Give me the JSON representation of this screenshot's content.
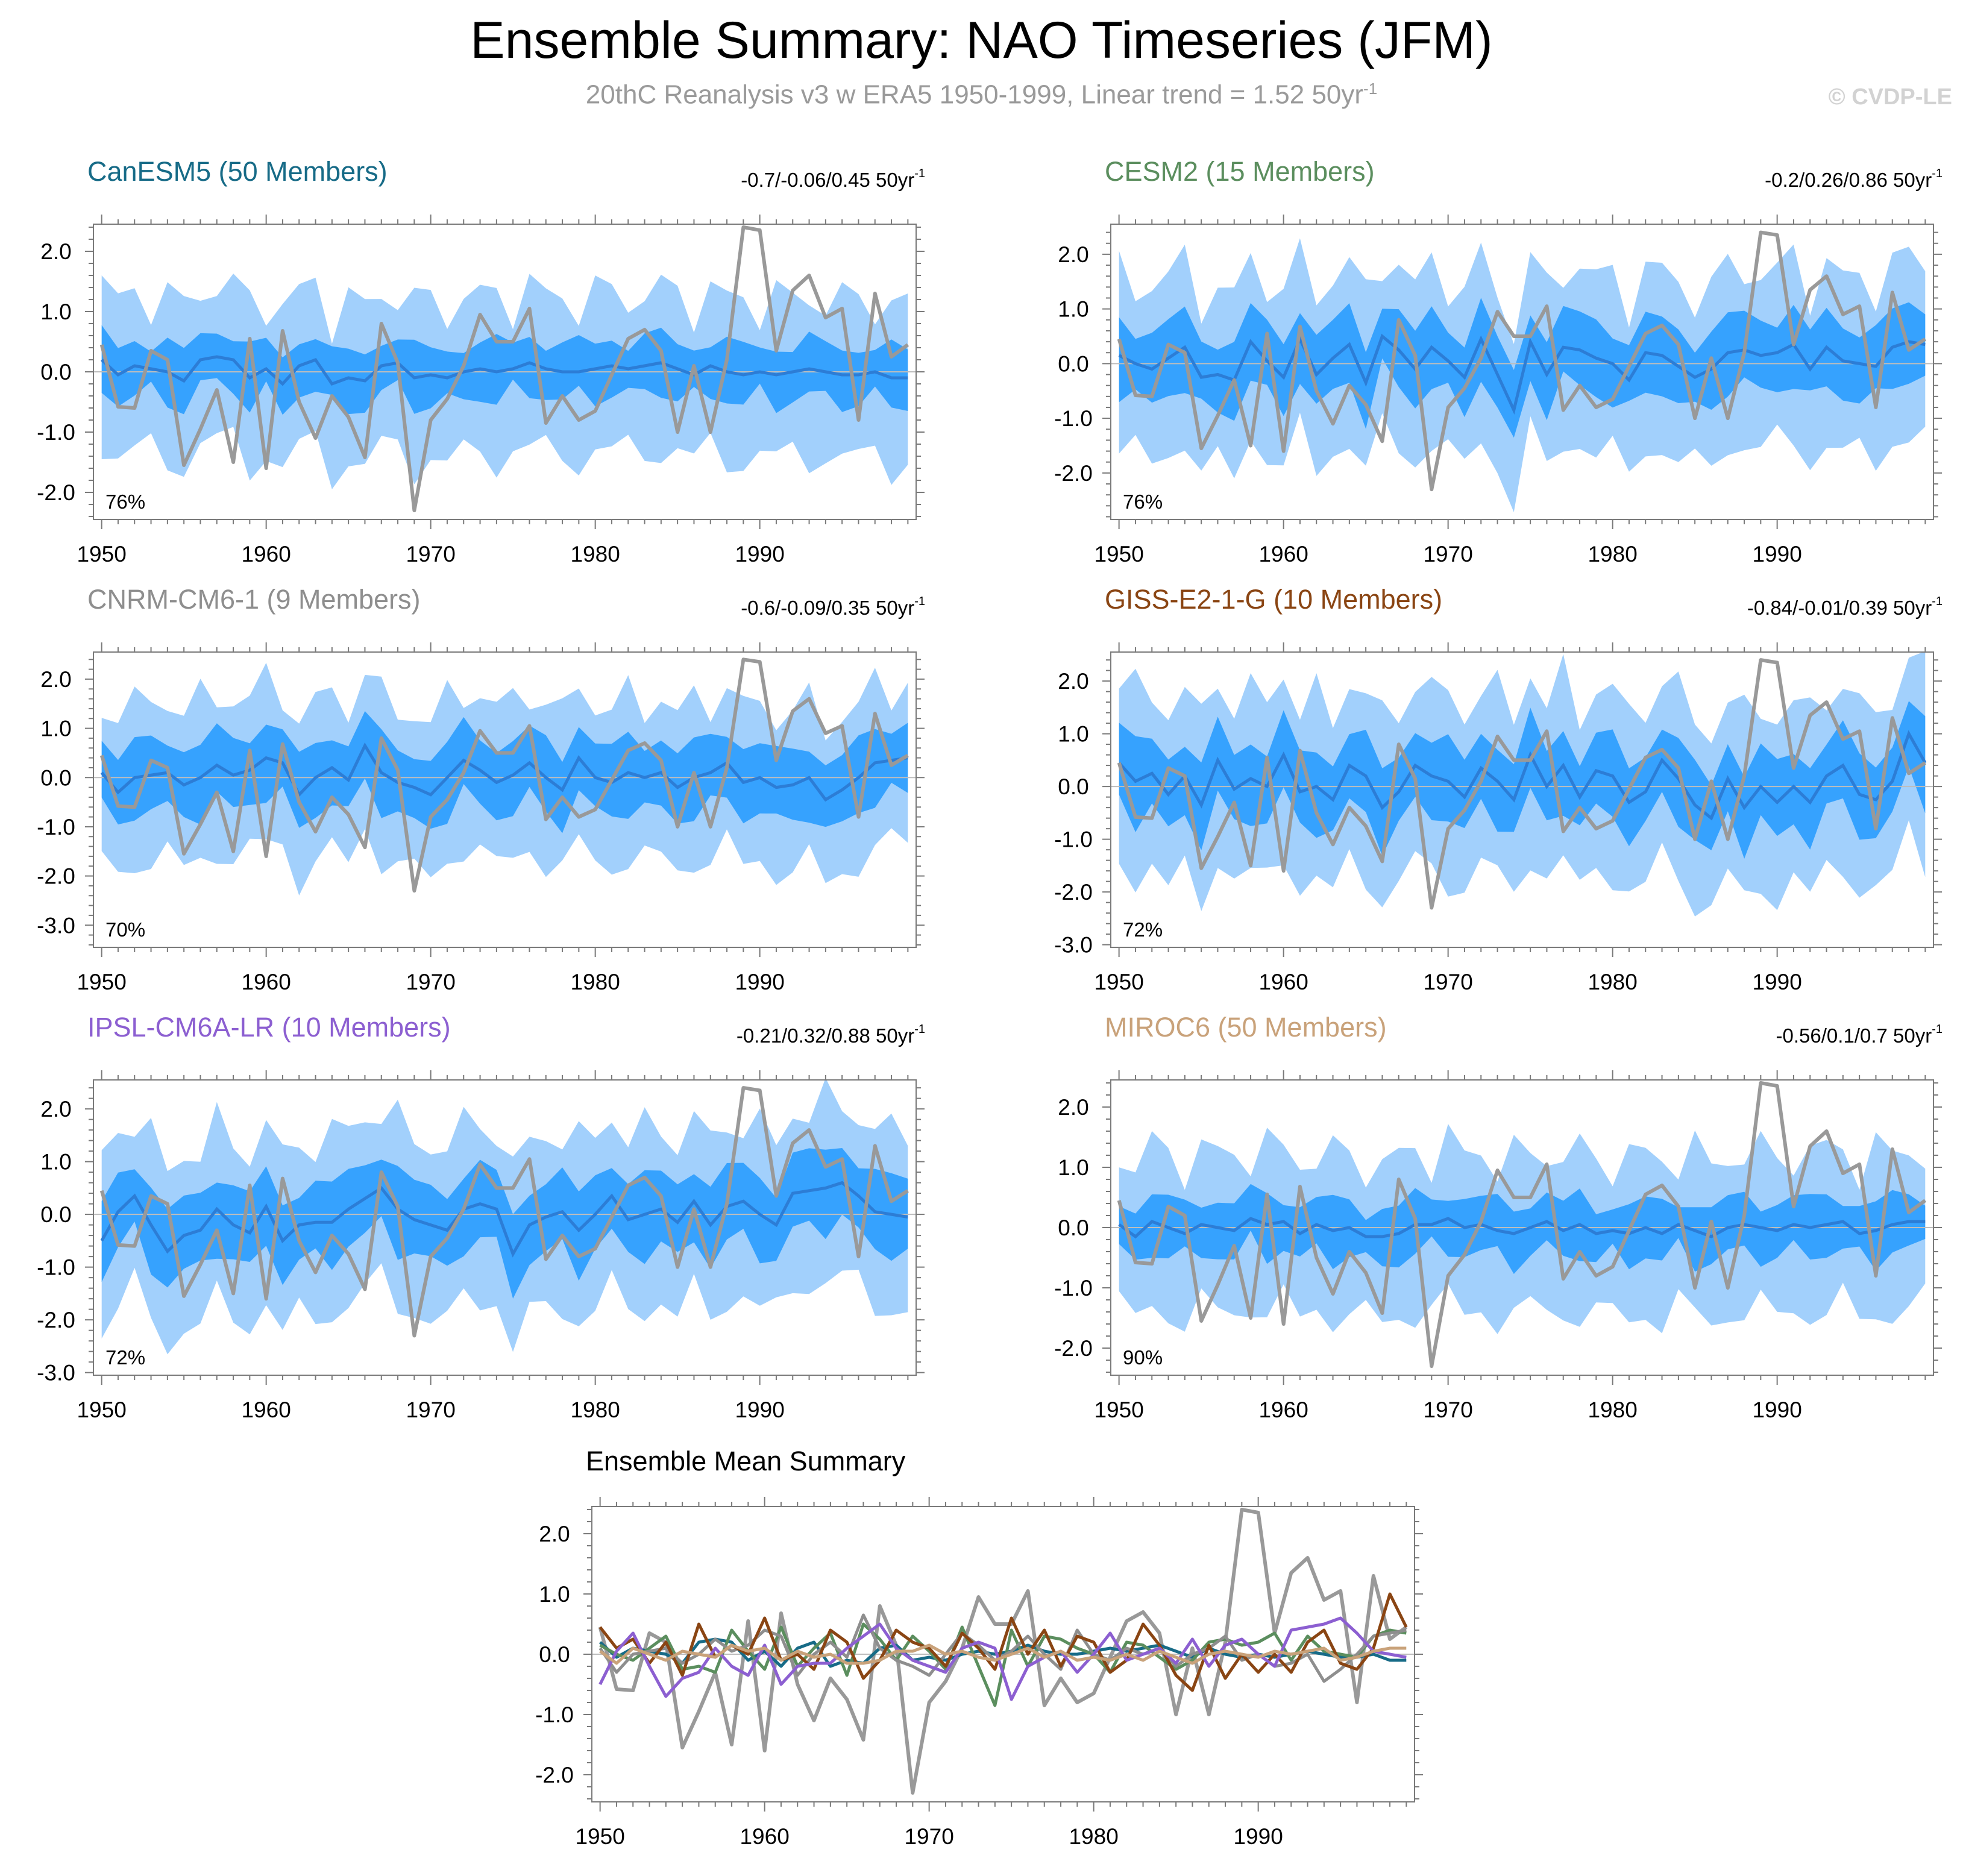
{
  "title": "Ensemble Summary: NAO Timeseries (JFM)",
  "subtitle": {
    "text": "20thC Reanalysis v3 w ERA5 1950-1999, Linear trend = 1.52 50yr",
    "superscript": "-1"
  },
  "copyright": "© CVDP-LE",
  "colors": {
    "band_light": "#a2d0fc",
    "band_dark": "#36a2fe",
    "ensemble_mean_line": "#2c7dd6",
    "observation_line": "#999999",
    "zero_line": "#bdbdbd",
    "frame": "#7a7a7a"
  },
  "chart_data": [
    {
      "type": "line",
      "model": "CanESM5 (50 Members)",
      "title_color": "#176b87",
      "trend_label": "-0.7/-0.06/0.45 50yr",
      "trend_superscript": "-1",
      "percent_label": "76%",
      "xlim": [
        1949.5,
        1999.5
      ],
      "ylim": [
        -2.45,
        2.45
      ],
      "yticks": [
        "2.0",
        "1.0",
        "0.0",
        "-1.0",
        "-2.0"
      ],
      "ytick_values": [
        2,
        1,
        0,
        -1,
        -2
      ],
      "xticks": [
        "1950",
        "1960",
        "1970",
        "1980",
        "1990"
      ],
      "spread_amp": [
        1.2,
        0.45
      ]
    },
    {
      "type": "line",
      "model": "CESM2 (15 Members)",
      "title_color": "#5b8e5e",
      "trend_label": "-0.2/0.26/0.86 50yr",
      "trend_superscript": "-1",
      "percent_label": "76%",
      "xlim": [
        1949.5,
        1999.5
      ],
      "ylim": [
        -2.85,
        2.55
      ],
      "yticks": [
        "2.0",
        "1.0",
        "0.0",
        "-1.0",
        "-2.0"
      ],
      "ytick_values": [
        2,
        1,
        0,
        -1,
        -2
      ],
      "xticks": [
        "1950",
        "1960",
        "1970",
        "1980",
        "1990"
      ],
      "spread_amp": [
        1.5,
        0.65
      ]
    },
    {
      "type": "line",
      "model": "CNRM-CM6-1 (9 Members)",
      "title_color": "#8e8e8e",
      "trend_label": "-0.6/-0.09/0.35 50yr",
      "trend_superscript": "-1",
      "percent_label": "70%",
      "xlim": [
        1949.5,
        1999.5
      ],
      "ylim": [
        -3.45,
        2.55
      ],
      "yticks": [
        "2.0",
        "1.0",
        "0.0",
        "-1.0",
        "-2.0",
        "-3.0"
      ],
      "ytick_values": [
        2,
        1,
        0,
        -1,
        -2,
        -3
      ],
      "xticks": [
        "1950",
        "1960",
        "1970",
        "1980",
        "1990"
      ],
      "spread_amp": [
        1.5,
        0.7
      ]
    },
    {
      "type": "line",
      "model": "GISS-E2-1-G (10 Members)",
      "title_color": "#8a4513",
      "trend_label": "-0.84/-0.01/0.39 50yr",
      "trend_superscript": "-1",
      "percent_label": "72%",
      "xlim": [
        1949.5,
        1999.5
      ],
      "ylim": [
        -3.05,
        2.55
      ],
      "yticks": [
        "2.0",
        "1.0",
        "0.0",
        "-1.0",
        "-2.0",
        "-3.0"
      ],
      "ytick_values": [
        2,
        1,
        0,
        -1,
        -2,
        -3
      ],
      "xticks": [
        "1950",
        "1960",
        "1970",
        "1980",
        "1990"
      ],
      "spread_amp": [
        1.6,
        0.7
      ]
    },
    {
      "type": "line",
      "model": "IPSL-CM6A-LR (10 Members)",
      "title_color": "#8c5fd1",
      "trend_label": "-0.21/0.32/0.88 50yr",
      "trend_superscript": "-1",
      "percent_label": "72%",
      "xlim": [
        1949.5,
        1999.5
      ],
      "ylim": [
        -3.05,
        2.55
      ],
      "yticks": [
        "2.0",
        "1.0",
        "0.0",
        "-1.0",
        "-2.0",
        "-3.0"
      ],
      "ytick_values": [
        2,
        1,
        0,
        -1,
        -2,
        -3
      ],
      "xticks": [
        "1950",
        "1960",
        "1970",
        "1980",
        "1990"
      ],
      "spread_amp": [
        1.55,
        0.7
      ]
    },
    {
      "type": "line",
      "model": "MIROC6 (50 Members)",
      "title_color": "#c9a27a",
      "trend_label": "-0.56/0.1/0.7 50yr",
      "trend_superscript": "-1",
      "percent_label": "90%",
      "xlim": [
        1949.5,
        1999.5
      ],
      "ylim": [
        -2.45,
        2.45
      ],
      "yticks": [
        "2.0",
        "1.0",
        "0.0",
        "-1.0",
        "-2.0"
      ],
      "ytick_values": [
        2,
        1,
        0,
        -1,
        -2
      ],
      "xticks": [
        "1950",
        "1960",
        "1970",
        "1980",
        "1990"
      ],
      "spread_amp": [
        1.2,
        0.45
      ]
    },
    {
      "type": "line",
      "title": "Ensemble Mean Summary",
      "xlim": [
        1949.5,
        1999.5
      ],
      "ylim": [
        -2.45,
        2.45
      ],
      "yticks": [
        "2.0",
        "1.0",
        "0.0",
        "-1.0",
        "-2.0"
      ],
      "ytick_values": [
        2,
        1,
        0,
        -1,
        -2
      ],
      "xticks": [
        "1950",
        "1960",
        "1970",
        "1980",
        "1990"
      ],
      "series": [
        {
          "name": "CanESM5",
          "color": "#176b87"
        },
        {
          "name": "CESM2",
          "color": "#5b8e5e"
        },
        {
          "name": "CNRM-CM6-1",
          "color": "#8e8e8e"
        },
        {
          "name": "GISS-E2-1-G",
          "color": "#8a4513"
        },
        {
          "name": "IPSL-CM6A-LR",
          "color": "#8c5fd1"
        },
        {
          "name": "MIROC6",
          "color": "#c9a27a"
        }
      ]
    }
  ],
  "observations": {
    "name": "20thC Reanalysis v3 w ERA5",
    "x": [
      1950,
      1951,
      1952,
      1953,
      1954,
      1955,
      1956,
      1957,
      1958,
      1959,
      1960,
      1961,
      1962,
      1963,
      1964,
      1965,
      1966,
      1967,
      1968,
      1969,
      1970,
      1971,
      1972,
      1973,
      1974,
      1975,
      1976,
      1977,
      1978,
      1979,
      1980,
      1981,
      1982,
      1983,
      1984,
      1985,
      1986,
      1987,
      1988,
      1989,
      1990,
      1991,
      1992,
      1993,
      1994,
      1995,
      1996,
      1997,
      1998,
      1999
    ],
    "y": [
      0.45,
      -0.58,
      -0.6,
      0.35,
      0.2,
      -1.55,
      -0.95,
      -0.3,
      -1.5,
      0.55,
      -1.6,
      0.68,
      -0.5,
      -1.1,
      -0.4,
      -0.75,
      -1.42,
      0.8,
      0.15,
      -2.3,
      -0.8,
      -0.45,
      0.1,
      0.95,
      0.5,
      0.5,
      1.05,
      -0.85,
      -0.4,
      -0.8,
      -0.65,
      -0.05,
      0.55,
      0.7,
      0.35,
      -1.0,
      0.1,
      -1.0,
      0.2,
      2.4,
      2.35,
      0.35,
      1.35,
      1.6,
      0.9,
      1.05,
      -0.8,
      1.3,
      0.25,
      0.45
    ]
  },
  "ensemble_means": {
    "CanESM5": [
      0.2,
      -0.05,
      0.1,
      0.05,
      0.0,
      -0.15,
      0.2,
      0.25,
      0.2,
      -0.1,
      0.05,
      -0.2,
      0.1,
      0.2,
      -0.2,
      -0.1,
      -0.15,
      0.1,
      0.15,
      -0.1,
      -0.05,
      -0.1,
      0.0,
      0.05,
      0.0,
      0.05,
      0.15,
      0.05,
      0.0,
      0.0,
      0.05,
      0.1,
      0.05,
      0.1,
      0.15,
      0.05,
      -0.05,
      0.1,
      0.0,
      -0.05,
      0.0,
      -0.05,
      0.0,
      0.05,
      0.0,
      -0.05,
      -0.05,
      0.0,
      -0.1,
      -0.1
    ],
    "CESM2": [
      0.15,
      0.0,
      -0.1,
      0.1,
      0.3,
      -0.25,
      -0.2,
      -0.3,
      0.4,
      0.05,
      -0.25,
      0.45,
      -0.2,
      0.1,
      0.35,
      -0.35,
      0.5,
      0.25,
      -0.1,
      0.3,
      0.05,
      -0.25,
      0.45,
      -0.2,
      -0.85,
      0.4,
      -0.2,
      0.3,
      0.25,
      0.1,
      0.0,
      -0.3,
      0.2,
      0.15,
      -0.05,
      -0.25,
      -0.1,
      0.2,
      0.25,
      0.15,
      0.2,
      0.35,
      -0.1,
      0.3,
      0.05,
      0.0,
      -0.05,
      0.3,
      0.4,
      0.35
    ],
    "CNRM-CM6-1": [
      0.1,
      -0.3,
      0.0,
      0.05,
      0.1,
      -0.15,
      0.0,
      0.25,
      0.05,
      0.15,
      0.4,
      0.3,
      -0.35,
      0.0,
      0.2,
      -0.05,
      0.65,
      0.1,
      -0.1,
      -0.2,
      -0.35,
      0.0,
      0.35,
      0.15,
      -0.1,
      0.05,
      0.3,
      0.0,
      -0.25,
      0.4,
      0.0,
      -0.1,
      0.1,
      0.0,
      0.1,
      -0.2,
      0.0,
      0.1,
      0.3,
      -0.1,
      0.0,
      -0.2,
      -0.15,
      0.0,
      -0.45,
      -0.25,
      0.0,
      0.3,
      0.35,
      0.4
    ],
    "GISS-E2-1-G": [
      0.45,
      0.1,
      0.25,
      -0.15,
      0.2,
      -0.35,
      0.5,
      -0.05,
      0.15,
      0.0,
      0.6,
      -0.1,
      0.0,
      -0.25,
      0.4,
      0.2,
      -0.4,
      -0.1,
      0.4,
      0.2,
      0.1,
      -0.2,
      0.35,
      0.1,
      -0.25,
      0.6,
      0.0,
      0.4,
      -0.2,
      0.3,
      0.2,
      -0.3,
      -0.1,
      0.5,
      0.15,
      -0.35,
      -0.6,
      0.15,
      -0.4,
      0.0,
      -0.3,
      0.0,
      -0.3,
      0.2,
      0.4,
      -0.15,
      -0.25,
      0.1,
      1.0,
      0.45
    ],
    "IPSL-CM6A-LR": [
      -0.5,
      0.05,
      0.35,
      -0.2,
      -0.7,
      -0.4,
      -0.3,
      0.1,
      -0.2,
      -0.35,
      0.15,
      -0.5,
      -0.2,
      -0.15,
      -0.15,
      0.1,
      0.3,
      0.5,
      0.1,
      -0.1,
      -0.2,
      -0.3,
      0.1,
      0.2,
      0.1,
      -0.75,
      -0.2,
      -0.05,
      0.05,
      -0.3,
      0.0,
      0.35,
      -0.1,
      0.0,
      0.1,
      -0.15,
      0.25,
      -0.2,
      0.15,
      0.25,
      0.0,
      -0.2,
      0.4,
      0.45,
      0.5,
      0.6,
      0.35,
      0.05,
      0.0,
      -0.05
    ],
    "MIROC6": [
      0.05,
      -0.15,
      0.1,
      0.0,
      -0.1,
      0.05,
      0.0,
      -0.05,
      0.15,
      0.05,
      0.1,
      -0.1,
      0.05,
      -0.05,
      0.0,
      -0.15,
      -0.15,
      -0.1,
      0.05,
      0.05,
      0.15,
      0.0,
      0.05,
      -0.05,
      -0.1,
      0.0,
      0.1,
      -0.05,
      0.05,
      -0.1,
      -0.05,
      -0.1,
      0.0,
      -0.1,
      0.05,
      -0.05,
      -0.15,
      0.0,
      0.05,
      0.0,
      -0.05,
      0.05,
      0.0,
      0.05,
      0.1,
      -0.1,
      -0.05,
      0.05,
      0.1,
      0.1
    ]
  }
}
